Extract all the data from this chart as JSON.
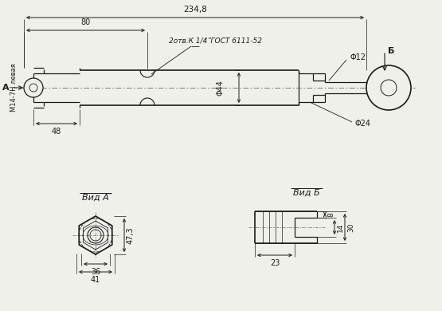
{
  "bg_color": "#f0f0eb",
  "line_color": "#1a1a1a",
  "annotations": {
    "dim_234_8": "234,8",
    "dim_80": "80",
    "dim_48": "48",
    "dim_phi44": "Φ44",
    "dim_phi12": "Φ12",
    "dim_phi24": "Φ24",
    "label_2otv": "2отв.К 1/4ʺГОСТ 6111-52",
    "label_M14": "М14-7Н левая",
    "view_A": "Вид А",
    "view_B": "Вид Б",
    "dim_47_3": "47,3",
    "dim_36": "36",
    "dim_41": "41",
    "dim_23": "23",
    "dim_14": "14",
    "dim_30": "30",
    "dim_8": "8",
    "label_A": "А",
    "label_B": "Б"
  }
}
